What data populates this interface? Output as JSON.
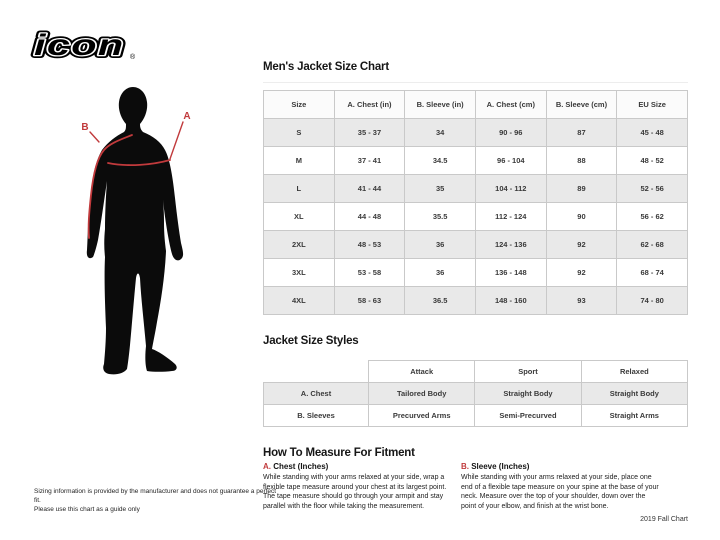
{
  "colors": {
    "accent_red": "#c13a3c",
    "silhouette": "#0b0b0b",
    "table_border": "#c9c9c9",
    "row_shade": "#e9e9e9"
  },
  "brand": {
    "logo_text": "icon",
    "registered_mark": "®"
  },
  "figure": {
    "label_a": "A",
    "label_b": "B"
  },
  "size_chart": {
    "title": "Men's Jacket Size Chart",
    "columns": [
      "Size",
      "A. Chest (in)",
      "B. Sleeve (in)",
      "A. Chest (cm)",
      "B. Sleeve (cm)",
      "EU Size"
    ],
    "rows": [
      [
        "S",
        "35 - 37",
        "34",
        "90 - 96",
        "87",
        "45 - 48"
      ],
      [
        "M",
        "37 - 41",
        "34.5",
        "96 - 104",
        "88",
        "48 - 52"
      ],
      [
        "L",
        "41 - 44",
        "35",
        "104 - 112",
        "89",
        "52 - 56"
      ],
      [
        "XL",
        "44 - 48",
        "35.5",
        "112 - 124",
        "90",
        "56 - 62"
      ],
      [
        "2XL",
        "48 - 53",
        "36",
        "124 - 136",
        "92",
        "62 - 68"
      ],
      [
        "3XL",
        "53 - 58",
        "36",
        "136 - 148",
        "92",
        "68 - 74"
      ],
      [
        "4XL",
        "58 - 63",
        "36.5",
        "148 - 160",
        "93",
        "74 - 80"
      ]
    ]
  },
  "styles_table": {
    "title": "Jacket Size Styles",
    "columns": [
      "",
      "Attack",
      "Sport",
      "Relaxed"
    ],
    "rows": [
      [
        "A. Chest",
        "Tailored Body",
        "Straight Body",
        "Straight Body"
      ],
      [
        "B. Sleeves",
        "Precurved Arms",
        "Semi-Precurved",
        "Straight Arms"
      ]
    ]
  },
  "measure": {
    "title": "How To Measure For Fitment",
    "items": [
      {
        "prefix": "A.",
        "heading": " Chest (Inches)",
        "body": "While standing with your arms relaxed at your side, wrap a flexible tape measure around your chest at its largest point. The tape measure should go through your armpit and stay parallel with the floor while taking the measurement."
      },
      {
        "prefix": "B.",
        "heading": " Sleeve (Inches)",
        "body": "While standing with your arms relaxed at your side, place one end of a flexible tape measure on your spine at the base of your neck. Measure over the top of your shoulder, down over the point of your elbow, and finish at the wrist bone."
      }
    ]
  },
  "disclaimer": {
    "lines": [
      "Sizing information is provided by the manufacturer and does not guarantee a perfect fit.",
      "Please use this chart as a guide only"
    ]
  },
  "footer": {
    "chart_version": "2019 Fall Chart"
  }
}
